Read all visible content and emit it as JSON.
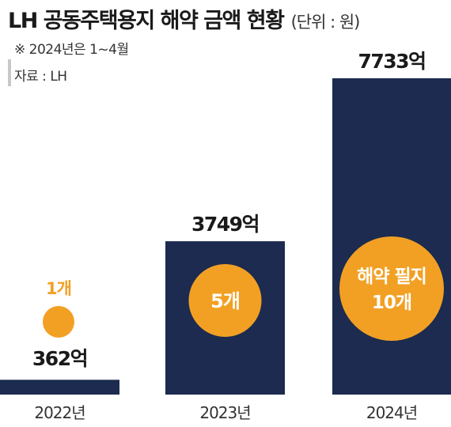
{
  "title": "LH 공동주택용지 해약 금액 현황",
  "unit": "(단위 : 원)",
  "note": "※ 2024년은 1~4월",
  "source": "자료 : LH",
  "colors": {
    "bar": "#1c2b4f",
    "circle": "#f2a024",
    "text": "#1a1a1a",
    "count_label": "#f2a024",
    "circle_text": "#ffffff"
  },
  "chart_data": {
    "type": "bar",
    "categories": [
      "2022년",
      "2023년",
      "2024년"
    ],
    "values": [
      362,
      3749,
      7733
    ],
    "value_labels": [
      "362억",
      "3749억",
      "7733억"
    ],
    "ylim": [
      0,
      7733
    ],
    "grid": false,
    "counts": [
      1,
      5,
      10
    ],
    "count_labels": [
      "1개",
      "5개",
      "10개"
    ],
    "count_caption": "해약 필지"
  }
}
